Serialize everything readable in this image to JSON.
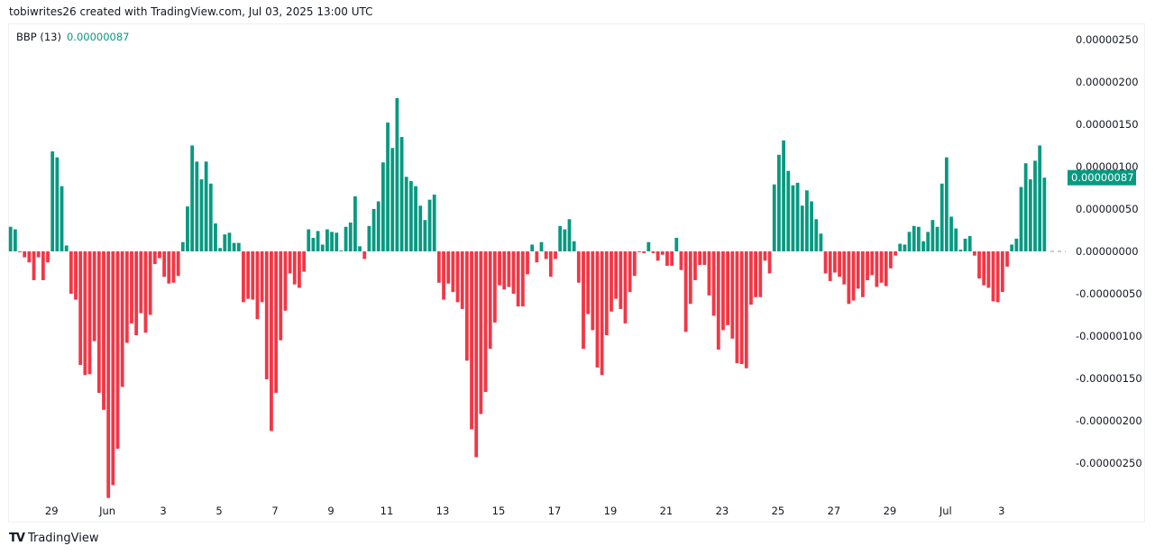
{
  "header": {
    "credit": "tobiwrites26 created with TradingView.com, Jul 03, 2025 13:00 UTC"
  },
  "legend": {
    "indicator": "BBP (13)",
    "value": "0.00000087"
  },
  "footer": {
    "brand": "TradingView",
    "logo_icon": "tradingview-logo-icon"
  },
  "colors": {
    "positive": "#089981",
    "negative": "#f23645",
    "zero_line": "#9598a1"
  },
  "chart_data": {
    "type": "bar",
    "title": "BBP (13)",
    "last_value_label": "0.00000087",
    "ylim": [
      -2.95e-06,
      2.68e-06
    ],
    "y_ticks": [
      "0.00000250",
      "0.00000200",
      "0.00000150",
      "0.00000100",
      "0.00000050",
      "0.00000000",
      "-0.00000050",
      "-0.00000100",
      "-0.00000150",
      "-0.00000200",
      "-0.00000250"
    ],
    "x_ticks": [
      "29",
      "Jun",
      "3",
      "5",
      "7",
      "9",
      "11",
      "13",
      "15",
      "17",
      "19",
      "21",
      "23",
      "25",
      "27",
      "29",
      "Jul",
      "3"
    ],
    "grid": false,
    "values": [
      2.9e-07,
      2.6e-07,
      -1e-08,
      -7e-08,
      -1.3e-07,
      -3.4e-07,
      -7e-08,
      -3.4e-07,
      -1.3e-07,
      1.18e-06,
      1.11e-06,
      7.7e-07,
      7e-08,
      -5e-07,
      -5.7e-07,
      -1.34e-06,
      -1.46e-06,
      -1.45e-06,
      -1.06e-06,
      -1.67e-06,
      -1.87e-06,
      -2.91e-06,
      -2.76e-06,
      -2.33e-06,
      -1.6e-06,
      -1.08e-06,
      -8.5e-07,
      -9.9e-07,
      -7.3e-07,
      -9.6e-07,
      -7.5e-07,
      -1.5e-07,
      -8e-08,
      -3e-07,
      -3.8e-07,
      -3.7e-07,
      -2.9e-07,
      1.1e-07,
      5.3e-07,
      1.25e-06,
      1.06e-06,
      8.5e-07,
      1.06e-06,
      8e-07,
      3.3e-07,
      4e-08,
      2e-07,
      2.2e-07,
      1e-07,
      1e-07,
      -6e-07,
      -5.6e-07,
      -5.7e-07,
      -8e-07,
      -6e-07,
      -1.51e-06,
      -2.12e-06,
      -1.67e-06,
      -1.05e-06,
      -7e-07,
      -2.6e-07,
      -3.9e-07,
      -4.3e-07,
      -2.4e-07,
      2.6e-07,
      1.6e-07,
      2.4e-07,
      8e-08,
      2.6e-07,
      2.3e-07,
      2.2e-07,
      1e-08,
      2.9e-07,
      3.4e-07,
      6.5e-07,
      6e-08,
      -9e-08,
      3e-07,
      5e-07,
      5.9e-07,
      1.05e-06,
      1.52e-06,
      1.22e-06,
      1.81e-06,
      1.35e-06,
      8.8e-07,
      8.3e-07,
      7.7e-07,
      5.4e-07,
      3.7e-07,
      6.1e-07,
      6.7e-07,
      -3.7e-07,
      -5.7e-07,
      -3.8e-07,
      -4.8e-07,
      -6e-07,
      -6.8e-07,
      -1.29e-06,
      -2.1e-06,
      -2.43e-06,
      -1.92e-06,
      -1.66e-06,
      -1.15e-06,
      -8.4e-07,
      -4e-07,
      -4.5e-07,
      -4.2e-07,
      -5e-07,
      -6.5e-07,
      -6.5e-07,
      -2.7e-07,
      8e-08,
      -1.3e-07,
      1.1e-07,
      -9e-08,
      -3e-07,
      -9e-08,
      3e-07,
      2.6e-07,
      3.8e-07,
      1.2e-07,
      -3.7e-07,
      -1.15e-06,
      -7.4e-07,
      -9.3e-07,
      -1.37e-06,
      -1.46e-06,
      -9.9e-07,
      -7.1e-07,
      -5.6e-07,
      -6.8e-07,
      -8.5e-07,
      -4.8e-07,
      -2.9e-07,
      -1e-08,
      -2e-08,
      1.1e-07,
      -2e-08,
      -1.1e-07,
      -4e-08,
      -1.7e-07,
      -1.7e-07,
      1.6e-07,
      -2.2e-07,
      -9.5e-07,
      -6.2e-07,
      -3.4e-07,
      -1.6e-07,
      -1.6e-07,
      -5.2e-07,
      -7.6e-07,
      -1.16e-06,
      -9.3e-07,
      -8.7e-07,
      -1.03e-06,
      -1.32e-06,
      -1.33e-06,
      -1.38e-06,
      -6.3e-07,
      -5.4e-07,
      -5.4e-07,
      -1.1e-07,
      -2.6e-07,
      7.9e-07,
      1.14e-06,
      1.31e-06,
      9.5e-07,
      7.8e-07,
      8.1e-07,
      5.4e-07,
      7.2e-07,
      5.9e-07,
      3.8e-07,
      2.1e-07,
      -2.6e-07,
      -3.5e-07,
      -2.5e-07,
      -3e-07,
      -3.9e-07,
      -6.2e-07,
      -5.8e-07,
      -4.4e-07,
      -5.4e-07,
      -3.4e-07,
      -2.8e-07,
      -4.2e-07,
      -3.7e-07,
      -4.1e-07,
      -2e-07,
      -5e-08,
      9e-08,
      8e-08,
      2.3e-07,
      3e-07,
      2.9e-07,
      1.2e-07,
      2.3e-07,
      3.7e-07,
      2.9e-07,
      8e-07,
      1.11e-06,
      4.1e-07,
      2.7e-07,
      2e-08,
      1.5e-07,
      1.8e-07,
      -5e-08,
      -3.2e-07,
      -4e-07,
      -4.3e-07,
      -5.9e-07,
      -6e-07,
      -4.8e-07,
      -1.8e-07,
      8e-08,
      1.5e-07,
      7.6e-07,
      1.04e-06,
      8.5e-07,
      1.07e-06,
      1.25e-06,
      8.7e-07
    ]
  }
}
